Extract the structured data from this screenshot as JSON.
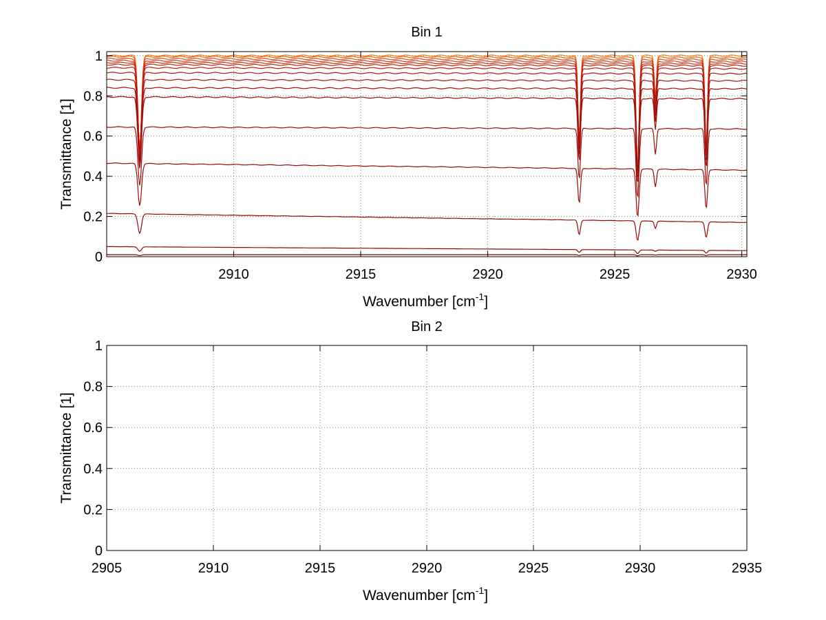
{
  "chart_data": [
    {
      "type": "line",
      "title": "Bin 1",
      "xlabel_main": "Wavenumber [cm",
      "xlabel_sup": "-1",
      "xlabel_end": "]",
      "ylabel": "Transmittance [1]",
      "xlim": [
        2905,
        2930.2
      ],
      "ylim": [
        0,
        1.02
      ],
      "xticks": [
        2910,
        2915,
        2920,
        2925,
        2930
      ],
      "xtick_labels": [
        "2910",
        "2915",
        "2920",
        "2925",
        "2930"
      ],
      "yticks": [
        0,
        0.2,
        0.4,
        0.6,
        0.8,
        1
      ],
      "ytick_labels": [
        "0",
        "0.2",
        "0.4",
        "0.6",
        "0.8",
        "1"
      ],
      "grid": true,
      "absorption_lines_cm1": [
        {
          "x": 2906.3,
          "relative_depth": 0.45,
          "width": 0.1
        },
        {
          "x": 2923.6,
          "relative_depth": 0.4,
          "width": 0.07
        },
        {
          "x": 2925.9,
          "relative_depth": 0.55,
          "width": 0.08
        },
        {
          "x": 2926.6,
          "relative_depth": 0.2,
          "width": 0.06
        },
        {
          "x": 2928.6,
          "relative_depth": 0.45,
          "width": 0.07
        }
      ],
      "series": [
        {
          "baseline_start": 1.0,
          "baseline_end": 1.0,
          "color": "#ff7a00"
        },
        {
          "baseline_start": 0.995,
          "baseline_end": 0.99,
          "color": "#f06010"
        },
        {
          "baseline_start": 0.985,
          "baseline_end": 0.98,
          "color": "#e04a14"
        },
        {
          "baseline_start": 0.975,
          "baseline_end": 0.97,
          "color": "#d83a16"
        },
        {
          "baseline_start": 0.965,
          "baseline_end": 0.96,
          "color": "#cc2e14"
        },
        {
          "baseline_start": 0.955,
          "baseline_end": 0.95,
          "color": "#c42410"
        },
        {
          "baseline_start": 0.94,
          "baseline_end": 0.935,
          "color": "#bc1c0e"
        },
        {
          "baseline_start": 0.915,
          "baseline_end": 0.91,
          "color": "#b4160c"
        },
        {
          "baseline_start": 0.88,
          "baseline_end": 0.875,
          "color": "#ac120a"
        },
        {
          "baseline_start": 0.84,
          "baseline_end": 0.835,
          "color": "#a40e08"
        },
        {
          "baseline_start": 0.795,
          "baseline_end": 0.785,
          "color": "#a00c06"
        },
        {
          "baseline_start": 0.645,
          "baseline_end": 0.635,
          "color": "#9c0a06"
        },
        {
          "baseline_start": 0.465,
          "baseline_end": 0.43,
          "color": "#980806"
        },
        {
          "baseline_start": 0.215,
          "baseline_end": 0.17,
          "color": "#940604"
        },
        {
          "baseline_start": 0.05,
          "baseline_end": 0.03,
          "color": "#900404"
        },
        {
          "baseline_start": 0.01,
          "baseline_end": 0.01,
          "color": "#880202"
        }
      ]
    },
    {
      "type": "line",
      "title": "Bin 2",
      "xlabel_main": "Wavenumber [cm",
      "xlabel_sup": "-1",
      "xlabel_end": "]",
      "ylabel": "Transmittance [1]",
      "xlim": [
        2905,
        2935
      ],
      "ylim": [
        0,
        1
      ],
      "xticks": [
        2905,
        2910,
        2915,
        2920,
        2925,
        2930,
        2935
      ],
      "xtick_labels": [
        "2905",
        "2910",
        "2915",
        "2920",
        "2925",
        "2930",
        "2935"
      ],
      "yticks": [
        0,
        0.2,
        0.4,
        0.6,
        0.8,
        1
      ],
      "ytick_labels": [
        "0",
        "0.2",
        "0.4",
        "0.6",
        "0.8",
        "1"
      ],
      "grid": true,
      "series": []
    }
  ]
}
